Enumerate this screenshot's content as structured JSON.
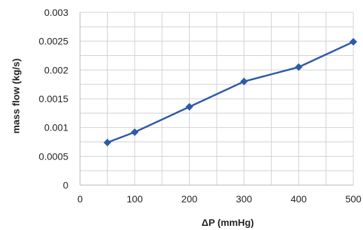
{
  "chart_data": {
    "type": "line",
    "title": "",
    "xlabel": "ΔP (mmHg)",
    "ylabel": "mass flow (kg/s)",
    "xlim": [
      0,
      500
    ],
    "ylim": [
      0,
      0.003
    ],
    "x_ticks": [
      0,
      100,
      200,
      300,
      400,
      500
    ],
    "x_tick_labels": [
      "0",
      "100",
      "200",
      "300",
      "400",
      "500"
    ],
    "y_ticks": [
      0,
      0.0005,
      0.001,
      0.0015,
      0.002,
      0.0025,
      0.003
    ],
    "y_tick_labels": [
      "0",
      "0.0005",
      "0.001",
      "0.0015",
      "0.002",
      "0.0025",
      "0.003"
    ],
    "x_minor_step": 50,
    "y_minor_step": 0.00025,
    "grid": true,
    "legend": "none",
    "series": [
      {
        "x": [
          50,
          100,
          200,
          300,
          400,
          500
        ],
        "values": [
          0.00074,
          0.00092,
          0.00136,
          0.0018,
          0.00205,
          0.00249
        ],
        "color": "#2E5AA8",
        "marker": "diamond"
      }
    ],
    "grid_color": "#D0D0D0",
    "axis_color": "#C0C0C0"
  }
}
